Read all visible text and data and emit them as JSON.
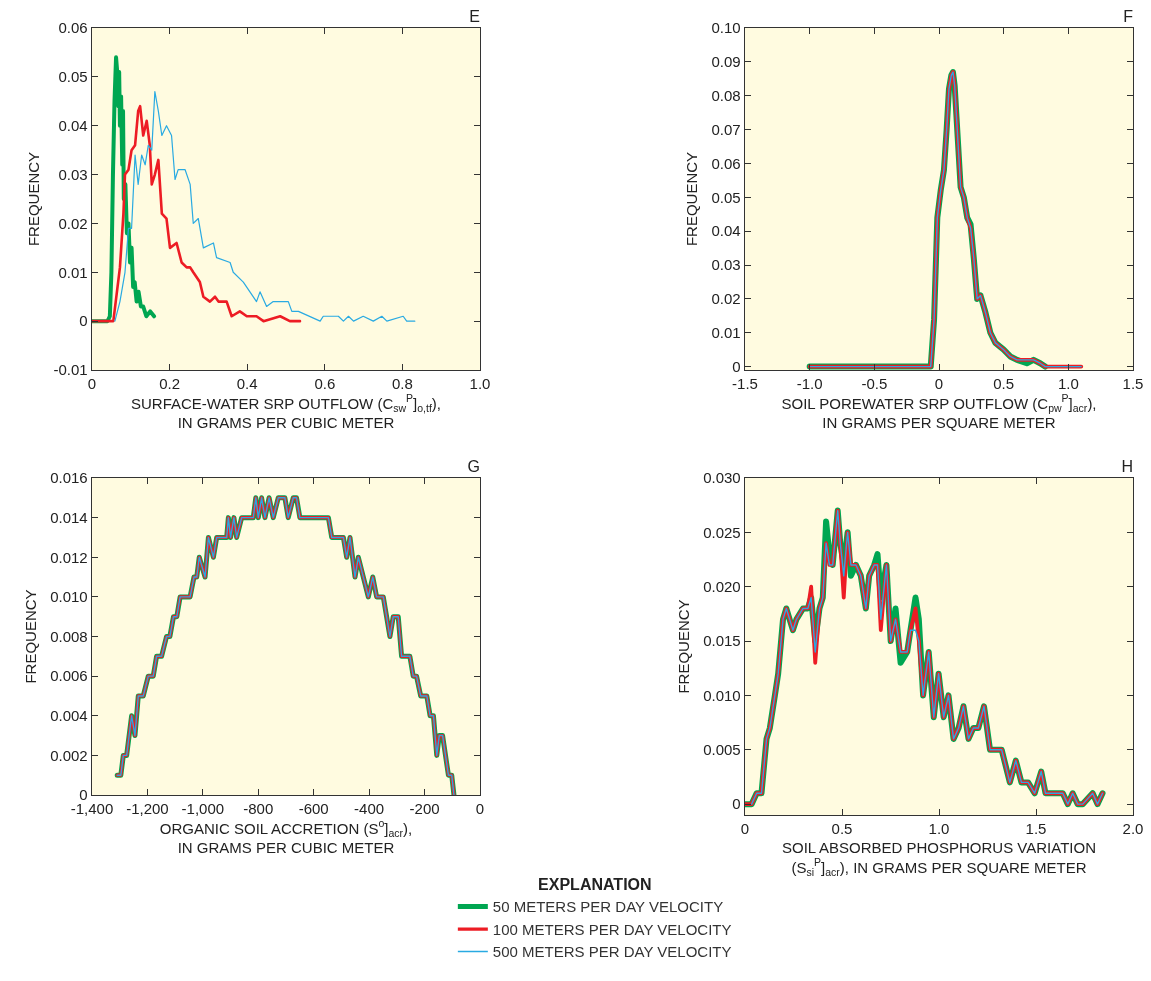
{
  "chart_data": [
    {
      "type": "line",
      "title": "E",
      "xlabel": "SURFACE-WATER SRP OUTFLOW (C$_{sw}$$^{P}$]$_{o,tf}$),\nIN GRAMS PER CUBIC METER",
      "ylabel": "FREQUENCY",
      "xlim": [
        0,
        1
      ],
      "ylim": [
        -0.01,
        0.06
      ],
      "xticks": [
        0,
        0.2,
        0.4,
        0.6,
        0.8,
        {
          "value": 1,
          "label": "1.0"
        }
      ],
      "yticks": [
        -0.01,
        0,
        0.01,
        0.02,
        0.03,
        0.04,
        0.05,
        0.06
      ],
      "series": [
        {
          "color": "#00a651",
          "x": [
            0,
            0.04,
            0.046,
            0.05,
            0.054,
            0.058,
            0.062,
            0.066,
            0.068,
            0.07,
            0.072,
            0.075,
            0.078,
            0.08,
            0.082,
            0.086,
            0.09,
            0.094,
            0.098,
            0.102,
            0.106,
            0.11,
            0.115,
            0.12,
            0.126,
            0.132,
            0.14,
            0.15,
            0.16
          ],
          "values": [
            0,
            0,
            0.001,
            0.01,
            0.03,
            0.045,
            0.054,
            0.05,
            0.044,
            0.051,
            0.04,
            0.046,
            0.032,
            0.043,
            0.025,
            0.028,
            0.018,
            0.02,
            0.012,
            0.015,
            0.007,
            0.008,
            0.004,
            0.006,
            0.003,
            0.003,
            0.001,
            0.002,
            0.001
          ]
        },
        {
          "color": "#ed1c24",
          "x": [
            0,
            0.055,
            0.072,
            0.081,
            0.085,
            0.094,
            0.102,
            0.111,
            0.119,
            0.124,
            0.132,
            0.141,
            0.149,
            0.154,
            0.162,
            0.171,
            0.18,
            0.192,
            0.201,
            0.218,
            0.231,
            0.244,
            0.253,
            0.261,
            0.278,
            0.287,
            0.304,
            0.317,
            0.326,
            0.347,
            0.36,
            0.381,
            0.399,
            0.424,
            0.442,
            0.485,
            0.51,
            0.536
          ],
          "values": [
            0,
            0,
            0.011,
            0.022,
            0.03,
            0.031,
            0.035,
            0.036,
            0.043,
            0.044,
            0.038,
            0.041,
            0.036,
            0.028,
            0.03,
            0.033,
            0.022,
            0.021,
            0.015,
            0.016,
            0.012,
            0.011,
            0.011,
            0.01,
            0.008,
            0.005,
            0.004,
            0.005,
            0.004,
            0.004,
            0.001,
            0.002,
            0.001,
            0.001,
            0,
            0.001,
            0,
            0
          ]
        },
        {
          "color": "#29aae2",
          "x": [
            0.059,
            0.072,
            0.085,
            0.094,
            0.102,
            0.111,
            0.119,
            0.128,
            0.137,
            0.145,
            0.154,
            0.162,
            0.171,
            0.18,
            0.192,
            0.205,
            0.214,
            0.222,
            0.24,
            0.253,
            0.261,
            0.274,
            0.287,
            0.313,
            0.321,
            0.356,
            0.364,
            0.39,
            0.407,
            0.424,
            0.433,
            0.45,
            0.467,
            0.506,
            0.515,
            0.532,
            0.588,
            0.596,
            0.635,
            0.648,
            0.661,
            0.674,
            0.699,
            0.725,
            0.747,
            0.76,
            0.802,
            0.811,
            0.832
          ],
          "values": [
            0,
            0.004,
            0.01,
            0.019,
            0.019,
            0.034,
            0.028,
            0.034,
            0.032,
            0.036,
            0.035,
            0.047,
            0.043,
            0.038,
            0.04,
            0.038,
            0.029,
            0.031,
            0.031,
            0.028,
            0.02,
            0.021,
            0.015,
            0.016,
            0.013,
            0.012,
            0.01,
            0.008,
            0.006,
            0.004,
            0.006,
            0.003,
            0.004,
            0.004,
            0.002,
            0.002,
            0,
            0.001,
            0.001,
            0,
            0.001,
            0,
            0.001,
            0,
            0.001,
            0,
            0.001,
            0,
            0
          ]
        }
      ]
    },
    {
      "type": "line",
      "title": "F",
      "xlabel": "SOIL POREWATER SRP OUTFLOW (C$_{pw}$$^{P}$]$_{acr}$),\nIN GRAMS PER SQUARE METER",
      "ylabel": "FREQUENCY",
      "xlim": [
        -1.5,
        1.5
      ],
      "ylim": [
        -0.001,
        0.1
      ],
      "xticks": [
        -1.5,
        {
          "value": -1,
          "label": "-1.0"
        },
        -0.5,
        0,
        0.5,
        {
          "value": 1,
          "label": "1.0"
        },
        1.5
      ],
      "yticks": [
        0,
        0.01,
        0.02,
        0.03,
        0.04,
        0.05,
        0.06,
        0.07,
        0.08,
        0.09,
        {
          "value": 0.1,
          "label": "0.10"
        }
      ],
      "series": [
        {
          "color": "#00a651",
          "x": [
            -1,
            -0.064,
            -0.038,
            -0.013,
            0.013,
            0.038,
            0.059,
            0.077,
            0.095,
            0.108,
            0.121,
            0.141,
            0.167,
            0.192,
            0.218,
            0.244,
            0.269,
            0.295,
            0.321,
            0.359,
            0.397,
            0.436,
            0.5,
            0.551,
            0.603,
            0.679,
            0.731,
            0.782,
            0.821
          ],
          "values": [
            0,
            0,
            0.014,
            0.044,
            0.052,
            0.058,
            0.07,
            0.082,
            0.086,
            0.087,
            0.083,
            0.07,
            0.053,
            0.05,
            0.044,
            0.042,
            0.032,
            0.02,
            0.021,
            0.016,
            0.01,
            0.007,
            0.005,
            0.003,
            0.002,
            0.001,
            0.002,
            0.001,
            0
          ]
        },
        {
          "color": "#ed1c24",
          "x": [
            -1,
            -0.064,
            -0.038,
            -0.013,
            0.013,
            0.038,
            0.059,
            0.077,
            0.095,
            0.108,
            0.121,
            0.141,
            0.167,
            0.192,
            0.218,
            0.244,
            0.269,
            0.295,
            0.321,
            0.359,
            0.397,
            0.436,
            0.5,
            0.551,
            0.603,
            0.679,
            0.731,
            0.782,
            0.821,
            1.1
          ],
          "values": [
            0,
            0,
            0.014,
            0.044,
            0.052,
            0.058,
            0.07,
            0.082,
            0.086,
            0.087,
            0.083,
            0.07,
            0.053,
            0.05,
            0.044,
            0.041,
            0.032,
            0.02,
            0.021,
            0.016,
            0.01,
            0.007,
            0.005,
            0.003,
            0.002,
            0.002,
            0.002,
            0.001,
            0,
            0
          ]
        },
        {
          "color": "#29aae2",
          "x": [
            -1,
            -0.064,
            -0.038,
            -0.013,
            0.013,
            0.038,
            0.059,
            0.077,
            0.095,
            0.108,
            0.121,
            0.141,
            0.167,
            0.192,
            0.218,
            0.244,
            0.269,
            0.295,
            0.321,
            0.359,
            0.397,
            0.436,
            0.5,
            0.551,
            0.603,
            0.731,
            0.782,
            0.821,
            1.1
          ],
          "values": [
            0,
            0,
            0.014,
            0.044,
            0.052,
            0.058,
            0.07,
            0.082,
            0.086,
            0.087,
            0.083,
            0.07,
            0.053,
            0.05,
            0.044,
            0.041,
            0.032,
            0.02,
            0.021,
            0.016,
            0.01,
            0.007,
            0.005,
            0.003,
            0.002,
            0.002,
            0.001,
            0,
            0
          ]
        }
      ]
    },
    {
      "type": "line",
      "title": "G",
      "xlabel": "ORGANIC SOIL ACCRETION (S$^{o}$]$_{acr}$),\nIN GRAMS PER CUBIC METER",
      "ylabel": "FREQUENCY",
      "xlim": [
        -1400,
        0
      ],
      "ylim": [
        0,
        0.016
      ],
      "xticks": [
        {
          "value": -1400,
          "label": "-1,400"
        },
        {
          "value": -1200,
          "label": "-1,200"
        },
        {
          "value": -1000,
          "label": "-1,000"
        },
        -800,
        -600,
        -400,
        -200,
        0
      ],
      "yticks": [
        0,
        0.002,
        0.004,
        0.006,
        0.008,
        {
          "value": 0.01,
          "label": "0.010"
        },
        0.012,
        0.014,
        0.016
      ],
      "legend": "bottom",
      "legend_title": "EXPLANATION",
      "series": [
        {
          "name": "50 METERS PER DAY VELOCITY",
          "color": "#00a651",
          "x": [
            -1309,
            -1296,
            -1287,
            -1275,
            -1257,
            -1245,
            -1233,
            -1215,
            -1197,
            -1179,
            -1167,
            -1149,
            -1131,
            -1119,
            -1106,
            -1094,
            -1082,
            -1046,
            -1032,
            -1022,
            -1013,
            -992,
            -980,
            -962,
            -950,
            -914,
            -908,
            -900,
            -888,
            -878,
            -860,
            -818,
            -809,
            -800,
            -788,
            -776,
            -761,
            -746,
            -728,
            -704,
            -692,
            -674,
            -662,
            -650,
            -547,
            -535,
            -493,
            -481,
            -469,
            -451,
            -439,
            -421,
            -403,
            -387,
            -373,
            -349,
            -325,
            -313,
            -295,
            -283,
            -253,
            -241,
            -229,
            -214,
            -192,
            -180,
            -168,
            -156,
            -147,
            -135,
            -114,
            -102,
            -94
          ],
          "values": [
            0.001,
            0.001,
            0.002,
            0.002,
            0.004,
            0.003,
            0.005,
            0.005,
            0.006,
            0.006,
            0.007,
            0.007,
            0.008,
            0.008,
            0.009,
            0.009,
            0.01,
            0.01,
            0.011,
            0.011,
            0.012,
            0.011,
            0.013,
            0.012,
            0.013,
            0.013,
            0.014,
            0.013,
            0.014,
            0.013,
            0.014,
            0.014,
            0.015,
            0.014,
            0.015,
            0.014,
            0.015,
            0.014,
            0.015,
            0.015,
            0.014,
            0.015,
            0.015,
            0.014,
            0.014,
            0.013,
            0.013,
            0.012,
            0.013,
            0.011,
            0.012,
            0.011,
            0.01,
            0.011,
            0.01,
            0.01,
            0.008,
            0.009,
            0.009,
            0.007,
            0.007,
            0.006,
            0.006,
            0.005,
            0.005,
            0.004,
            0.004,
            0.002,
            0.003,
            0.003,
            0.001,
            0.001,
            0
          ]
        },
        {
          "name": "100 METERS PER DAY VELOCITY",
          "color": "#ed1c24",
          "x": [
            -1309,
            -1296,
            -1287,
            -1275,
            -1257,
            -1245,
            -1233,
            -1215,
            -1197,
            -1179,
            -1167,
            -1149,
            -1131,
            -1119,
            -1106,
            -1094,
            -1082,
            -1046,
            -1032,
            -1022,
            -1013,
            -992,
            -980,
            -962,
            -950,
            -914,
            -908,
            -900,
            -888,
            -878,
            -860,
            -818,
            -809,
            -800,
            -788,
            -776,
            -761,
            -746,
            -728,
            -704,
            -692,
            -674,
            -662,
            -650,
            -547,
            -535,
            -493,
            -481,
            -469,
            -451,
            -439,
            -421,
            -403,
            -387,
            -373,
            -349,
            -325,
            -313,
            -295,
            -283,
            -253,
            -241,
            -229,
            -214,
            -192,
            -180,
            -168,
            -156,
            -147,
            -135,
            -114,
            -102,
            -94
          ],
          "values": [
            0.001,
            0.001,
            0.002,
            0.002,
            0.004,
            0.003,
            0.005,
            0.005,
            0.006,
            0.006,
            0.007,
            0.007,
            0.008,
            0.008,
            0.009,
            0.009,
            0.01,
            0.01,
            0.011,
            0.011,
            0.012,
            0.011,
            0.013,
            0.012,
            0.013,
            0.013,
            0.014,
            0.013,
            0.014,
            0.013,
            0.014,
            0.014,
            0.015,
            0.014,
            0.015,
            0.014,
            0.015,
            0.014,
            0.015,
            0.015,
            0.014,
            0.015,
            0.015,
            0.014,
            0.014,
            0.013,
            0.013,
            0.012,
            0.013,
            0.011,
            0.012,
            0.011,
            0.01,
            0.011,
            0.01,
            0.01,
            0.008,
            0.009,
            0.009,
            0.007,
            0.007,
            0.006,
            0.006,
            0.005,
            0.005,
            0.004,
            0.004,
            0.002,
            0.003,
            0.003,
            0.001,
            0.001,
            0
          ]
        },
        {
          "name": "500 METERS PER DAY VELOCITY",
          "color": "#29aae2",
          "x": [
            -1309,
            -1296,
            -1287,
            -1275,
            -1257,
            -1245,
            -1233,
            -1215,
            -1197,
            -1179,
            -1167,
            -1149,
            -1131,
            -1119,
            -1106,
            -1094,
            -1082,
            -1046,
            -1032,
            -1022,
            -1013,
            -992,
            -980,
            -962,
            -950,
            -914,
            -908,
            -900,
            -888,
            -878,
            -860,
            -818,
            -809,
            -800,
            -788,
            -776,
            -761,
            -746,
            -728,
            -704,
            -692,
            -674,
            -662,
            -650,
            -547,
            -535,
            -493,
            -481,
            -469,
            -451,
            -439,
            -421,
            -403,
            -387,
            -373,
            -349,
            -325,
            -313,
            -295,
            -283,
            -253,
            -241,
            -229,
            -214,
            -192,
            -180,
            -168,
            -156,
            -147,
            -135,
            -114,
            -102,
            -94
          ],
          "values": [
            0.001,
            0.001,
            0.002,
            0.002,
            0.004,
            0.003,
            0.005,
            0.005,
            0.006,
            0.006,
            0.007,
            0.007,
            0.008,
            0.008,
            0.009,
            0.009,
            0.01,
            0.01,
            0.011,
            0.011,
            0.012,
            0.011,
            0.013,
            0.012,
            0.013,
            0.013,
            0.014,
            0.013,
            0.014,
            0.013,
            0.014,
            0.014,
            0.015,
            0.014,
            0.015,
            0.014,
            0.015,
            0.014,
            0.015,
            0.015,
            0.014,
            0.015,
            0.015,
            0.014,
            0.014,
            0.013,
            0.013,
            0.012,
            0.013,
            0.011,
            0.012,
            0.011,
            0.01,
            0.011,
            0.01,
            0.01,
            0.008,
            0.009,
            0.009,
            0.007,
            0.007,
            0.006,
            0.006,
            0.005,
            0.005,
            0.004,
            0.004,
            0.002,
            0.003,
            0.003,
            0.001,
            0.001,
            0
          ]
        }
      ]
    },
    {
      "type": "line",
      "title": "H",
      "xlabel": "SOIL ABSORBED PHOSPHORUS VARIATION\n(S$_{si}$$^{P}$]$_{acr}$), IN GRAMS PER SQUARE METER",
      "ylabel": "FREQUENCY",
      "xlim": [
        0,
        2
      ],
      "ylim": [
        -0.001,
        0.03
      ],
      "xticks": [
        0,
        0.5,
        {
          "value": 1,
          "label": "1.0"
        },
        1.5,
        {
          "value": 2,
          "label": "2.0"
        }
      ],
      "yticks": [
        0,
        0.005,
        {
          "value": 0.01,
          "label": "0.010"
        },
        0.015,
        {
          "value": 0.02,
          "label": "0.020"
        },
        0.025,
        {
          "value": 0.03,
          "label": "0.030"
        }
      ],
      "series": [
        {
          "color": "#00a651",
          "x": [
            0,
            0.034,
            0.06,
            0.085,
            0.111,
            0.128,
            0.154,
            0.171,
            0.196,
            0.213,
            0.23,
            0.247,
            0.265,
            0.299,
            0.324,
            0.341,
            0.362,
            0.384,
            0.401,
            0.418,
            0.435,
            0.452,
            0.478,
            0.491,
            0.509,
            0.529,
            0.546,
            0.572,
            0.597,
            0.623,
            0.64,
            0.666,
            0.683,
            0.7,
            0.729,
            0.751,
            0.776,
            0.802,
            0.836,
            0.853,
            0.879,
            0.896,
            0.918,
            0.947,
            0.973,
            0.998,
            1.024,
            1.049,
            1.075,
            1.101,
            1.126,
            1.152,
            1.177,
            1.203,
            1.232,
            1.263,
            1.323,
            1.365,
            1.396,
            1.425,
            1.459,
            1.493,
            1.527,
            1.549,
            1.638,
            1.664,
            1.689,
            1.715,
            1.741,
            1.792,
            1.817,
            1.843
          ],
          "values": [
            0,
            0,
            0.001,
            0.001,
            0.006,
            0.007,
            0.01,
            0.012,
            0.017,
            0.018,
            0.017,
            0.016,
            0.017,
            0.018,
            0.018,
            0.019,
            0.015,
            0.018,
            0.019,
            0.026,
            0.023,
            0.022,
            0.027,
            0.024,
            0.022,
            0.025,
            0.021,
            0.022,
            0.021,
            0.018,
            0.021,
            0.022,
            0.023,
            0.019,
            0.022,
            0.015,
            0.018,
            0.013,
            0.014,
            0.016,
            0.019,
            0.017,
            0.01,
            0.014,
            0.008,
            0.012,
            0.008,
            0.01,
            0.006,
            0.007,
            0.009,
            0.006,
            0.007,
            0.007,
            0.009,
            0.005,
            0.005,
            0.002,
            0.004,
            0.002,
            0.002,
            0.001,
            0.003,
            0.001,
            0.001,
            0,
            0.001,
            0,
            0,
            0.001,
            0,
            0.001
          ]
        },
        {
          "color": "#ed1c24",
          "x": [
            0,
            0.034,
            0.06,
            0.085,
            0.111,
            0.128,
            0.154,
            0.171,
            0.196,
            0.213,
            0.23,
            0.247,
            0.265,
            0.299,
            0.324,
            0.341,
            0.362,
            0.384,
            0.401,
            0.418,
            0.435,
            0.452,
            0.478,
            0.491,
            0.509,
            0.529,
            0.546,
            0.572,
            0.597,
            0.623,
            0.64,
            0.666,
            0.683,
            0.7,
            0.729,
            0.751,
            0.776,
            0.802,
            0.836,
            0.853,
            0.879,
            0.896,
            0.918,
            0.947,
            0.973,
            0.998,
            1.024,
            1.049,
            1.075,
            1.101,
            1.126,
            1.152,
            1.177,
            1.203,
            1.232,
            1.263,
            1.323,
            1.365,
            1.396,
            1.425,
            1.459,
            1.493,
            1.527,
            1.549,
            1.638,
            1.664,
            1.689,
            1.715,
            1.741,
            1.792,
            1.817,
            1.843
          ],
          "values": [
            0,
            0,
            0.001,
            0.001,
            0.006,
            0.007,
            0.01,
            0.012,
            0.017,
            0.018,
            0.017,
            0.016,
            0.017,
            0.018,
            0.018,
            0.02,
            0.013,
            0.018,
            0.019,
            0.024,
            0.022,
            0.022,
            0.027,
            0.024,
            0.019,
            0.025,
            0.022,
            0.022,
            0.021,
            0.018,
            0.021,
            0.022,
            0.022,
            0.016,
            0.022,
            0.015,
            0.017,
            0.014,
            0.014,
            0.016,
            0.018,
            0.015,
            0.01,
            0.014,
            0.008,
            0.012,
            0.008,
            0.01,
            0.006,
            0.007,
            0.009,
            0.006,
            0.007,
            0.007,
            0.009,
            0.005,
            0.005,
            0.002,
            0.004,
            0.002,
            0.002,
            0.001,
            0.003,
            0.001,
            0.001,
            0,
            0.001,
            0,
            0,
            0.001,
            0,
            0.001
          ]
        },
        {
          "color": "#29aae2",
          "x": [
            0.034,
            0.06,
            0.085,
            0.111,
            0.128,
            0.154,
            0.171,
            0.196,
            0.213,
            0.23,
            0.247,
            0.265,
            0.299,
            0.324,
            0.341,
            0.362,
            0.384,
            0.401,
            0.418,
            0.435,
            0.452,
            0.478,
            0.491,
            0.509,
            0.529,
            0.546,
            0.572,
            0.597,
            0.623,
            0.64,
            0.666,
            0.683,
            0.7,
            0.729,
            0.751,
            0.776,
            0.802,
            0.836,
            0.853,
            0.879,
            0.896,
            0.918,
            0.947,
            0.973,
            0.998,
            1.024,
            1.049,
            1.075,
            1.101,
            1.126,
            1.152,
            1.177,
            1.203,
            1.232,
            1.263,
            1.323,
            1.365,
            1.396,
            1.425,
            1.459,
            1.493,
            1.527,
            1.549,
            1.638,
            1.664,
            1.689,
            1.715,
            1.741,
            1.792,
            1.817,
            1.843
          ],
          "values": [
            0,
            0.001,
            0.001,
            0.006,
            0.007,
            0.01,
            0.012,
            0.017,
            0.018,
            0.017,
            0.016,
            0.017,
            0.018,
            0.018,
            0.019,
            0.014,
            0.018,
            0.019,
            0.024,
            0.022,
            0.022,
            0.027,
            0.024,
            0.021,
            0.025,
            0.022,
            0.022,
            0.021,
            0.018,
            0.021,
            0.022,
            0.022,
            0.017,
            0.022,
            0.015,
            0.017,
            0.014,
            0.014,
            0.016,
            0.016,
            0.015,
            0.01,
            0.014,
            0.008,
            0.012,
            0.008,
            0.01,
            0.006,
            0.007,
            0.009,
            0.006,
            0.007,
            0.007,
            0.009,
            0.005,
            0.005,
            0.002,
            0.004,
            0.002,
            0.002,
            0.001,
            0.003,
            0.001,
            0.001,
            0,
            0.001,
            0,
            0,
            0.001,
            0,
            0.001
          ]
        }
      ]
    }
  ]
}
